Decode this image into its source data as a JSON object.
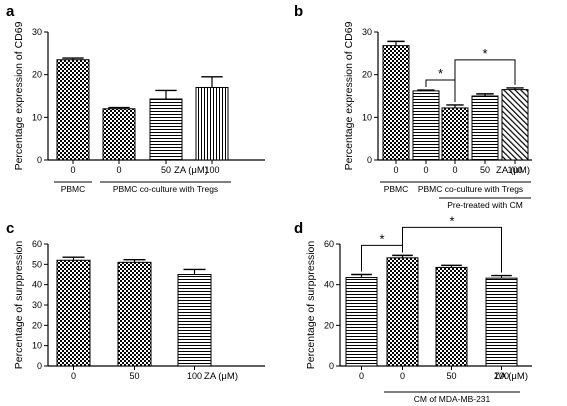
{
  "unit_label": "ZA (μM)",
  "colors": {
    "ink": "#000000",
    "background": "#ffffff"
  },
  "chart_data": [
    {
      "type": "bar",
      "panel": "a",
      "ylabel": "Percentage expression of CD69",
      "ylim": [
        0,
        30
      ],
      "yticks": [
        0,
        10,
        20,
        30
      ],
      "categories": [
        "0",
        "0",
        "50",
        "100"
      ],
      "values": [
        23.5,
        12.0,
        14.3,
        17.0
      ],
      "errors": [
        0.4,
        0.3,
        2.0,
        2.5
      ],
      "patterns": [
        "checker",
        "checker",
        "hlines",
        "vlines"
      ],
      "groups": [
        {
          "label": "PBMC",
          "from": 0,
          "to": 0,
          "row": 0
        },
        {
          "label": "PBMC co-culture with Tregs",
          "from": 1,
          "to": 3,
          "row": 0
        }
      ],
      "significance": []
    },
    {
      "type": "bar",
      "panel": "b",
      "ylabel": "Percentage expression of CD69",
      "ylim": [
        0,
        30
      ],
      "yticks": [
        0,
        10,
        20,
        30
      ],
      "categories": [
        "0",
        "0",
        "0",
        "50",
        "100"
      ],
      "values": [
        26.8,
        16.2,
        12.2,
        15.0,
        16.5
      ],
      "errors": [
        1.0,
        0.2,
        0.7,
        0.5,
        0.4
      ],
      "patterns": [
        "checker",
        "hlines",
        "checker",
        "hlines",
        "diag"
      ],
      "groups": [
        {
          "label": "PBMC",
          "from": 0,
          "to": 0,
          "row": 0
        },
        {
          "label": "PBMC co-culture with Tregs",
          "from": 1,
          "to": 4,
          "row": 0
        },
        {
          "label": "Pre-treated with CM",
          "from": 2,
          "to": 4,
          "row": 1
        }
      ],
      "significance": [
        {
          "from": 1,
          "to": 2,
          "label": "*",
          "level": 0
        },
        {
          "from": 2,
          "to": 4,
          "label": "*",
          "level": 1
        }
      ]
    },
    {
      "type": "bar",
      "panel": "c",
      "ylabel": "Percentage of surppression",
      "ylim": [
        0,
        60
      ],
      "yticks": [
        0,
        10,
        20,
        30,
        40,
        50,
        60
      ],
      "categories": [
        "0",
        "50",
        "100"
      ],
      "values": [
        52.0,
        51.0,
        45.0
      ],
      "errors": [
        1.5,
        1.3,
        2.5
      ],
      "patterns": [
        "checker",
        "checker",
        "hlines"
      ],
      "groups": [],
      "significance": []
    },
    {
      "type": "bar",
      "panel": "d",
      "ylabel": "Percentage of surppression",
      "ylim": [
        0,
        60
      ],
      "yticks": [
        0,
        20,
        40,
        60
      ],
      "categories": [
        "0",
        "0",
        "50",
        "100"
      ],
      "values": [
        43.5,
        53.2,
        48.5,
        43.2
      ],
      "errors": [
        1.5,
        1.2,
        1.0,
        1.3
      ],
      "patterns": [
        "hlines",
        "checker",
        "checker",
        "hlines"
      ],
      "groups": [
        {
          "label": "CM of MDA-MB-231",
          "from": 1,
          "to": 3,
          "row": 0
        }
      ],
      "significance": [
        {
          "from": 0,
          "to": 1,
          "label": "*",
          "level": 0
        },
        {
          "from": 1,
          "to": 3,
          "label": "*",
          "level": 1
        }
      ]
    }
  ]
}
